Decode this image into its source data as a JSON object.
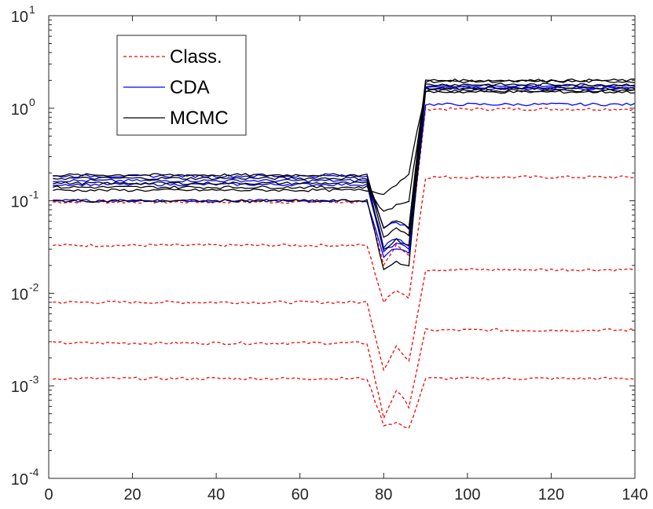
{
  "chart_data": {
    "type": "line",
    "title": "",
    "xlabel": "",
    "ylabel": "",
    "xlim": [
      0,
      140
    ],
    "ylim": [
      0.0001,
      10
    ],
    "yscale": "log",
    "grid": false,
    "legend_position": "top-left",
    "x_ticks": [
      "0",
      "20",
      "40",
      "60",
      "80",
      "100",
      "120",
      "140"
    ],
    "y_ticks": [
      {
        "base": "10",
        "exp": "-4"
      },
      {
        "base": "10",
        "exp": "-3"
      },
      {
        "base": "10",
        "exp": "-2"
      },
      {
        "base": "10",
        "exp": "-1"
      },
      {
        "base": "10",
        "exp": "0"
      },
      {
        "base": "10",
        "exp": "1"
      }
    ],
    "legend": [
      {
        "label": "Class.",
        "color": "#ff0000",
        "style": "dashed"
      },
      {
        "label": "CDA",
        "color": "#0000ff",
        "style": "solid"
      },
      {
        "label": "MCMC",
        "color": "#000000",
        "style": "solid"
      }
    ],
    "series_groups": [
      {
        "name": "Class.",
        "color": "#ff0000",
        "style": "dashed",
        "curves": [
          {
            "left": 0.097,
            "dip": 0.02,
            "bump": 0.034,
            "dip2": 0.026,
            "right": 0.98
          },
          {
            "left": 0.033,
            "dip": 0.008,
            "bump": 0.011,
            "dip2": 0.009,
            "right": 0.18
          },
          {
            "left": 0.008,
            "dip": 0.0015,
            "bump": 0.0027,
            "dip2": 0.0018,
            "right": 0.018
          },
          {
            "left": 0.0029,
            "dip": 0.00045,
            "bump": 0.0009,
            "dip2": 0.0006,
            "right": 0.004
          },
          {
            "left": 0.0012,
            "dip": 0.00038,
            "bump": 0.0004,
            "dip2": 0.00034,
            "right": 0.0012
          }
        ]
      },
      {
        "name": "CDA",
        "color": "#0000ff",
        "style": "solid",
        "curves": [
          {
            "left": 0.1,
            "dip": 0.025,
            "bump": 0.031,
            "dip2": 0.027,
            "right": 1.1
          },
          {
            "left": 0.15,
            "dip": 0.028,
            "bump": 0.035,
            "dip2": 0.03,
            "right": 1.62
          },
          {
            "left": 0.165,
            "dip": 0.032,
            "bump": 0.04,
            "dip2": 0.033,
            "right": 1.68
          },
          {
            "left": 0.185,
            "dip": 0.05,
            "bump": 0.06,
            "dip2": 0.05,
            "right": 1.75
          }
        ]
      },
      {
        "name": "MCMC",
        "color": "#000000",
        "style": "solid",
        "curves": [
          {
            "left": 0.19,
            "dip": 0.05,
            "bump": 0.062,
            "dip2": 0.052,
            "right": 2.0
          },
          {
            "left": 0.175,
            "dip": 0.04,
            "bump": 0.05,
            "dip2": 0.042,
            "right": 1.95
          },
          {
            "left": 0.155,
            "dip": 0.03,
            "bump": 0.038,
            "dip2": 0.033,
            "right": 1.8
          },
          {
            "left": 0.14,
            "dip": 0.075,
            "bump": 0.09,
            "dip2": 0.1,
            "right": 1.65
          },
          {
            "left": 0.13,
            "dip": 0.12,
            "bump": 0.15,
            "dip2": 0.2,
            "right": 1.55
          },
          {
            "left": 0.1,
            "dip": 0.018,
            "bump": 0.022,
            "dip2": 0.02,
            "right": 1.5
          }
        ]
      }
    ]
  }
}
